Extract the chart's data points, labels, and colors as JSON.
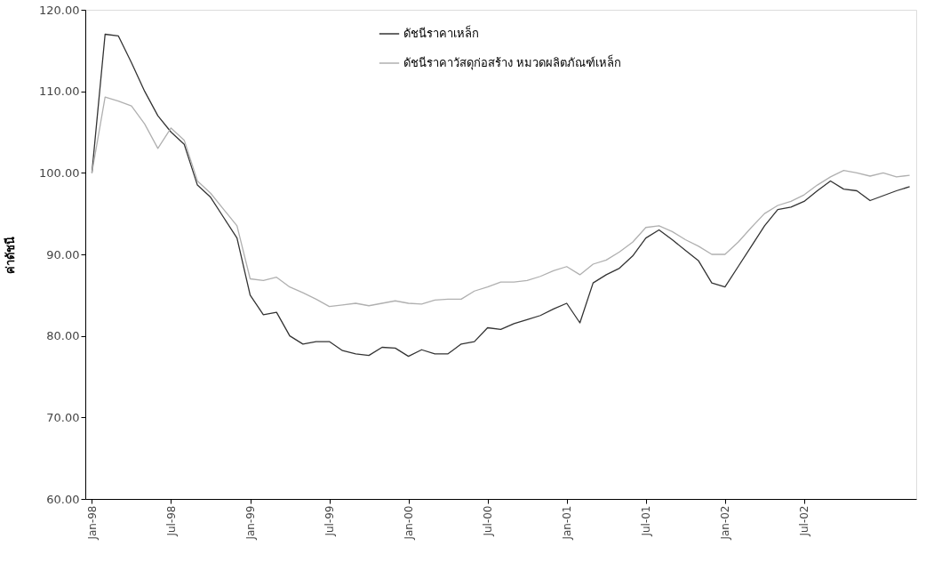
{
  "chart_data": {
    "type": "line",
    "ylabel": "ค่าดัชนี",
    "categories": [
      "Jan-98",
      null,
      null,
      null,
      null,
      null,
      "Jul-98",
      null,
      null,
      null,
      null,
      null,
      "Jan-99",
      null,
      null,
      null,
      null,
      null,
      "Jul-99",
      null,
      null,
      null,
      null,
      null,
      "Jan-00",
      null,
      null,
      null,
      null,
      null,
      "Jul-00",
      null,
      null,
      null,
      null,
      null,
      "Jan-01",
      null,
      null,
      null,
      null,
      null,
      "Jul-01",
      null,
      null,
      null,
      null,
      null,
      "Jan-02",
      null,
      null,
      null,
      null,
      null,
      "Jul-02",
      null,
      null,
      null,
      null,
      null,
      null,
      null,
      null
    ],
    "series": [
      {
        "name": "ดัชนีราคาเหล็ก",
        "color": "#333333",
        "values": [
          100.0,
          117.0,
          116.8,
          113.5,
          110.0,
          107.0,
          105.0,
          103.5,
          98.5,
          97.0,
          94.5,
          92.0,
          85.0,
          82.6,
          82.9,
          80.0,
          79.0,
          79.3,
          79.3,
          78.2,
          77.8,
          77.6,
          78.6,
          78.5,
          77.5,
          78.3,
          77.8,
          77.8,
          79.0,
          79.3,
          81.0,
          80.8,
          81.5,
          82.0,
          82.5,
          83.3,
          84.0,
          81.6,
          86.5,
          87.5,
          88.3,
          89.8,
          92.0,
          93.0,
          91.8,
          90.5,
          89.2,
          86.5,
          86.0,
          88.5,
          91.0,
          93.5,
          95.5,
          95.8,
          96.5,
          97.8,
          99.0,
          98.0,
          97.8,
          96.6,
          97.2,
          97.8,
          98.3
        ]
      },
      {
        "name": "ดัชนีราคาวัสดุก่อสร้าง หมวดผลิตภัณฑ์เหล็ก",
        "color": "#b0b0b0",
        "values": [
          100.0,
          109.3,
          108.8,
          108.2,
          106.0,
          103.0,
          105.5,
          104.0,
          99.0,
          97.5,
          95.5,
          93.5,
          87.0,
          86.8,
          87.2,
          86.0,
          85.3,
          84.5,
          83.6,
          83.8,
          84.0,
          83.7,
          84.0,
          84.3,
          84.0,
          83.9,
          84.4,
          84.5,
          84.5,
          85.5,
          86.0,
          86.6,
          86.6,
          86.8,
          87.3,
          88.0,
          88.5,
          87.5,
          88.8,
          89.3,
          90.3,
          91.5,
          93.3,
          93.5,
          92.8,
          91.8,
          91.0,
          90.0,
          90.0,
          91.5,
          93.3,
          95.0,
          96.0,
          96.5,
          97.3,
          98.5,
          99.5,
          100.3,
          100.0,
          99.6,
          100.0,
          99.5,
          99.7
        ]
      }
    ],
    "ylim": [
      60,
      120
    ],
    "yticks": [
      {
        "value": 60,
        "label": "60.00"
      },
      {
        "value": 70,
        "label": "70.00"
      },
      {
        "value": 80,
        "label": "80.00"
      },
      {
        "value": 90,
        "label": "90.00"
      },
      {
        "value": 100,
        "label": "100.00"
      },
      {
        "value": 110,
        "label": "110.00"
      },
      {
        "value": 120,
        "label": "120.00"
      }
    ],
    "grid": false,
    "legend": "top",
    "marker": "none",
    "line_style": "solid"
  }
}
